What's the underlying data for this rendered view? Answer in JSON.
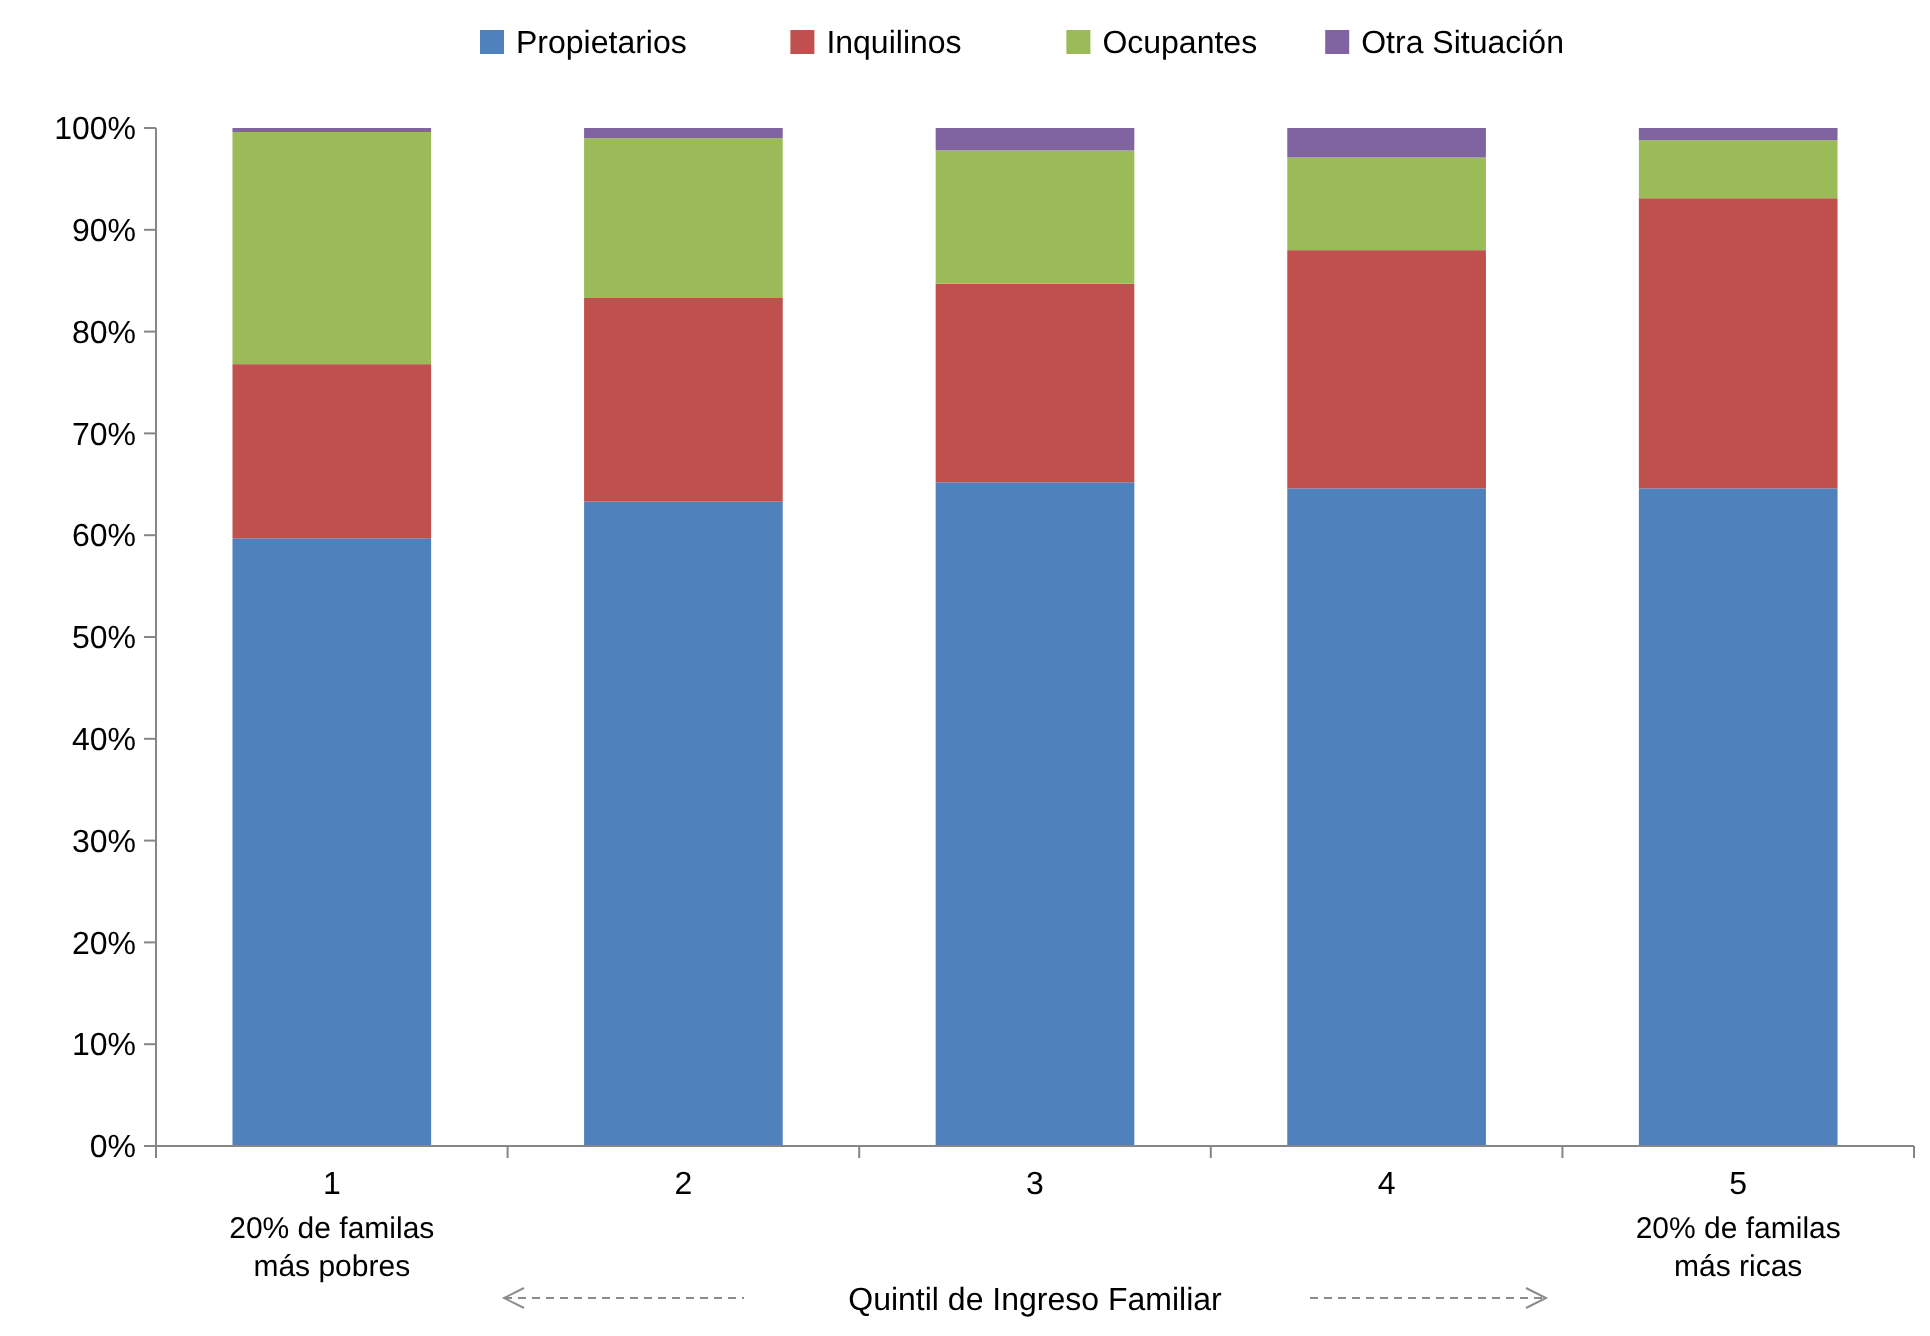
{
  "chart_data": {
    "type": "bar",
    "stacked": true,
    "categories": [
      "1",
      "2",
      "3",
      "4",
      "5"
    ],
    "series": [
      {
        "name": "Propietarios",
        "color": "#4f81bd",
        "values": [
          59.7,
          63.3,
          65.2,
          64.6,
          64.6
        ]
      },
      {
        "name": "Inquilinos",
        "color": "#c0504d",
        "values": [
          17.1,
          20.0,
          19.5,
          23.4,
          28.5
        ]
      },
      {
        "name": "Ocupantes",
        "color": "#9bbb59",
        "values": [
          22.8,
          15.7,
          13.1,
          9.1,
          5.7
        ]
      },
      {
        "name": "Otra Situación",
        "color": "#8064a2",
        "values": [
          0.4,
          1.0,
          2.2,
          2.9,
          1.2
        ]
      }
    ],
    "ylim": [
      0,
      100
    ],
    "yticks": [
      {
        "value": 0,
        "label": "0%"
      },
      {
        "value": 10,
        "label": "10%"
      },
      {
        "value": 20,
        "label": "20%"
      },
      {
        "value": 30,
        "label": "30%"
      },
      {
        "value": 40,
        "label": "40%"
      },
      {
        "value": 50,
        "label": "50%"
      },
      {
        "value": 60,
        "label": "60%"
      },
      {
        "value": 70,
        "label": "70%"
      },
      {
        "value": 80,
        "label": "80%"
      },
      {
        "value": 90,
        "label": "90%"
      },
      {
        "value": 100,
        "label": "100%"
      }
    ],
    "xlabel": "Quintil de Ingreso Familiar",
    "annotations": [
      "20%  de familas más pobres",
      "20%  de familas más ricas"
    ],
    "legend": "top",
    "grid": false
  }
}
